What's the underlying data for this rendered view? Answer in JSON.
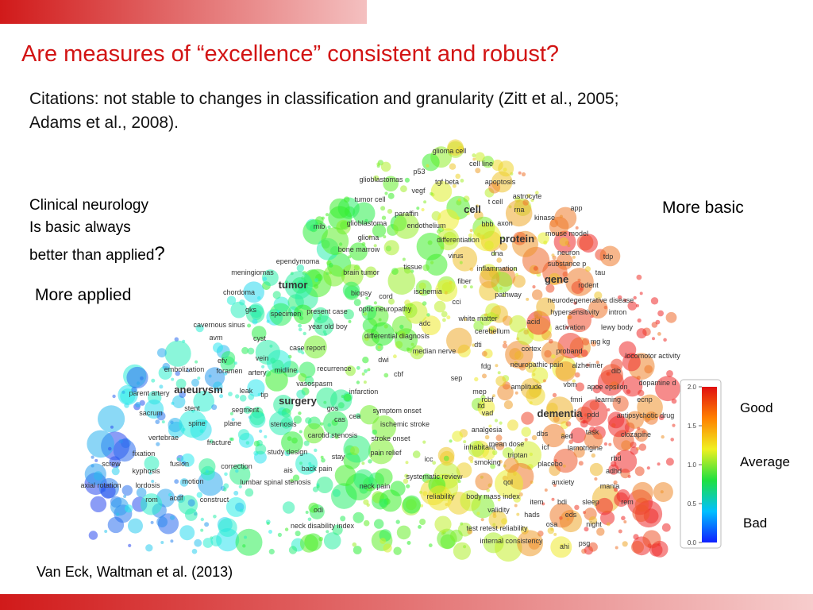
{
  "title": "Are measures of “excellence” consistent and robust?",
  "subtitle": [
    "Citations: not stable to changes in classification and granularity (Zitt et al., 2005;",
    "Adams et al., 2008)."
  ],
  "notes": {
    "clinical": [
      "Clinical neurology",
      "Is basic always",
      "better than applied"
    ],
    "question": "?",
    "basic": "More basic",
    "applied": "More applied"
  },
  "map": {
    "terms": [
      "glioma cell",
      "cell line",
      "p53",
      "glioblastomas",
      "tgf beta",
      "apoptosis",
      "vegf",
      "tumor cell",
      "astrocyte",
      "t cell",
      "cell",
      "rna",
      "app",
      "paraffin",
      "kinase",
      "mib",
      "glioblastoma",
      "endothelium",
      "bbb",
      "axon",
      "mouse model",
      "glioma",
      "differentiation",
      "protein",
      "bone marrow",
      "virus",
      "dna",
      "neuron",
      "tdp",
      "ependymoma",
      "substance p",
      "tissue",
      "inflammation",
      "meningiomas",
      "brain tumor",
      "tau",
      "tumor",
      "gene",
      "fiber",
      "rodent",
      "ischemia",
      "chordoma",
      "biopsy",
      "cord",
      "pathway",
      "neurodegenerative disease",
      "gks",
      "specimen",
      "present case",
      "optic neuropathy",
      "cci",
      "hypersensitivity",
      "intron",
      "white matter",
      "cavernous sinus",
      "year old boy",
      "adc",
      "acid",
      "lewy body",
      "avm",
      "cyst",
      "differential diagnosis",
      "cerebellum",
      "activation",
      "mg kg",
      "case report",
      "median nerve",
      "dti",
      "cortex",
      "proband",
      "locomotor activity",
      "vein",
      "efv",
      "dwi",
      "neuropathic pain",
      "alzheimer",
      "embolization",
      "foramen",
      "artery",
      "midline",
      "recurrence",
      "cbf",
      "fdg",
      "dib",
      "sep",
      "vasospasm",
      "vbm",
      "apoe epsilon",
      "dopamine d",
      "parent artery",
      "aneurysm",
      "leak",
      "infarction",
      "mep",
      "amplitude",
      "ecnp",
      "fmri",
      "learning",
      "tip",
      "surgery",
      "rcbf",
      "ltd",
      "stent",
      "segment",
      "gos",
      "symptom onset",
      "vad",
      "dementia",
      "pdd",
      "antipsychotic drug",
      "sacrum",
      "cas",
      "cea",
      "plane",
      "spine",
      "stenosis",
      "ischemic stroke",
      "analgesia",
      "dbs",
      "aed",
      "task",
      "clozapine",
      "carotid stenosis",
      "vertebrae",
      "stroke onset",
      "mean dose",
      "fracture",
      "inhabitant",
      "icf",
      "lamotrigine",
      "study design",
      "pain relief",
      "fixation",
      "stay",
      "triptan",
      "rbd",
      "smoking",
      "icc",
      "placebo",
      "kyphosis",
      "fusion",
      "correction",
      "ais",
      "back pain",
      "adhd",
      "screw",
      "systematic review",
      "lordosis",
      "motion",
      "lumbar spinal stenosis",
      "neck pain",
      "qol",
      "anxiety",
      "mania",
      "axial rotation",
      "reliability",
      "body mass index",
      "rom",
      "acdf",
      "construct",
      "item",
      "bdi",
      "sleep",
      "rem",
      "odi",
      "validity",
      "hads",
      "eds",
      "osa",
      "night",
      "neck disability index",
      "test retest reliability",
      "internal consistency",
      "ahi",
      "psg"
    ]
  },
  "legend": {
    "ticks": [
      {
        "value": 2,
        "label": "2.0"
      },
      {
        "value": 1.5,
        "label": "1.5"
      },
      {
        "value": 1,
        "label": "1.0"
      },
      {
        "value": 0.5,
        "label": "0.5"
      },
      {
        "value": 0,
        "label": "0.0"
      }
    ],
    "lim": [
      0,
      2
    ],
    "good": "Good",
    "average": "Average",
    "bad": "Bad"
  },
  "source": "Van Eck, Waltman et al. (2013)"
}
